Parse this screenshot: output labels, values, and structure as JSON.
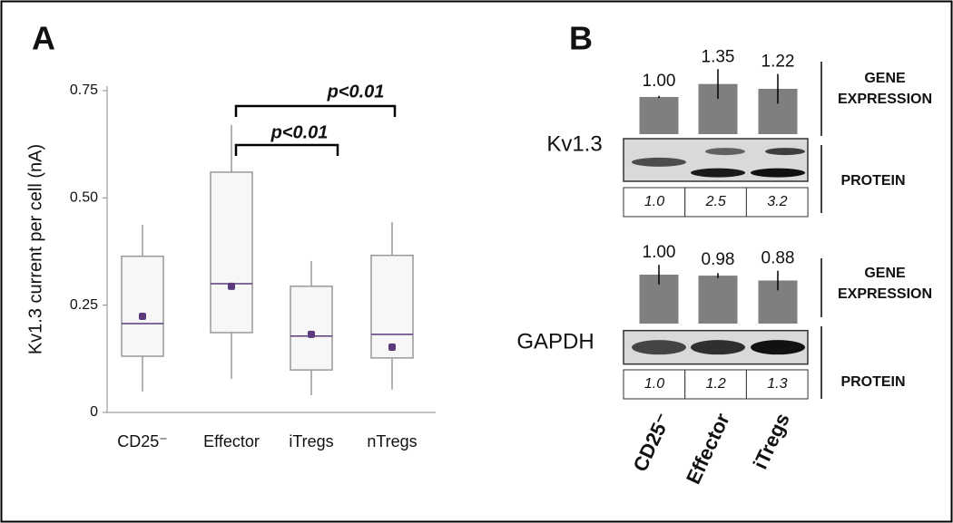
{
  "chart_data": [
    {
      "type": "box",
      "panel": "A",
      "ylabel": "Kv1.3 current per cell (nA)",
      "categories": [
        "CD25⁻",
        "Effector",
        "iTregs",
        "nTregs"
      ],
      "whisker_low": [
        0.049,
        0.078,
        0.04,
        0.053
      ],
      "q1": [
        0.131,
        0.186,
        0.099,
        0.127
      ],
      "median": [
        0.207,
        0.3,
        0.178,
        0.182
      ],
      "q3": [
        0.364,
        0.56,
        0.294,
        0.366
      ],
      "whisker_high": [
        0.437,
        0.67,
        0.353,
        0.444
      ],
      "mean": [
        0.224,
        0.294,
        0.182,
        0.152
      ],
      "color": "#5b3a7e",
      "ylim": [
        0,
        0.75
      ],
      "yticks": [
        0,
        0.25,
        {
          "value": 0.5,
          "label": "0.50"
        },
        0.75
      ],
      "annotations": [
        "p<0.01",
        "p<0.01"
      ]
    },
    {
      "type": "bar",
      "panel": "B",
      "title": "Kv1.3",
      "values": [
        1.0,
        1.35,
        1.22
      ],
      "value_labels": [
        "1.00",
        "1.35",
        "1.22"
      ],
      "errors": [
        0.03,
        0.4,
        0.4
      ],
      "color": "#7f7f7f",
      "gene_label": [
        "GENE",
        "EXPRESSION"
      ],
      "protein_label": "PROTEIN",
      "protein_values": [
        "1.0",
        "2.5",
        "3.2"
      ]
    },
    {
      "type": "bar",
      "title": "GAPDH",
      "values": [
        1.0,
        0.98,
        0.88
      ],
      "value_labels": [
        "1.00",
        "0.98",
        "0.88"
      ],
      "errors": [
        0.2,
        0.05,
        0.2
      ],
      "color": "#7f7f7f",
      "gene_label": [
        "GENE",
        "EXPRESSION"
      ],
      "protein_label": "PROTEIN",
      "protein_values": [
        "1.0",
        "1.2",
        "1.3"
      ],
      "categories": [
        "CD25⁻",
        "Effector",
        "iTregs"
      ]
    }
  ]
}
